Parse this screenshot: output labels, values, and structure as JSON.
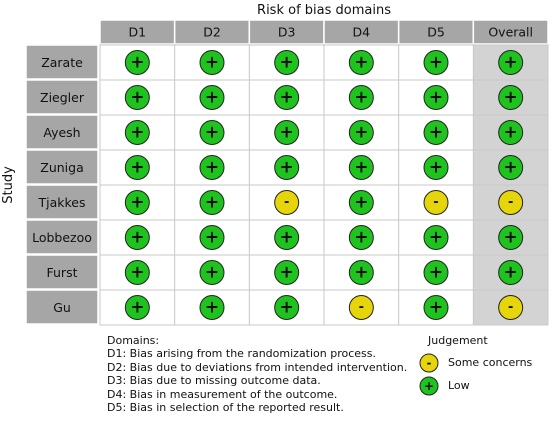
{
  "colors": {
    "header_bg": "#a6a6a6",
    "study_bg": "#a6a6a6",
    "overall_col_bg": "#d3d3d3",
    "grid_line": "#c8c8c8",
    "low": "#1ec31e",
    "some_concerns": "#e5d50a",
    "outline": "#222222"
  },
  "chart_data": {
    "type": "table",
    "title": "Risk of bias domains",
    "ylabel": "Study",
    "columns": [
      "D1",
      "D2",
      "D3",
      "D4",
      "D5",
      "Overall"
    ],
    "studies": [
      "Zarate",
      "Ziegler",
      "Ayesh",
      "Zuniga",
      "Tjakkes",
      "Lobbezoo",
      "Furst",
      "Gu"
    ],
    "judgements": [
      [
        "+",
        "+",
        "+",
        "+",
        "+",
        "+"
      ],
      [
        "+",
        "+",
        "+",
        "+",
        "+",
        "+"
      ],
      [
        "+",
        "+",
        "+",
        "+",
        "+",
        "+"
      ],
      [
        "+",
        "+",
        "+",
        "+",
        "+",
        "+"
      ],
      [
        "+",
        "+",
        "-",
        "+",
        "-",
        "-"
      ],
      [
        "+",
        "+",
        "+",
        "+",
        "+",
        "+"
      ],
      [
        "+",
        "+",
        "+",
        "+",
        "+",
        "+"
      ],
      [
        "+",
        "+",
        "+",
        "-",
        "+",
        "-"
      ]
    ],
    "judgement_levels": {
      "+": "Low",
      "-": "Some concerns"
    }
  },
  "domains_note": {
    "heading": "Domains:",
    "lines": [
      "D1: Bias arising from the randomization process.",
      "D2: Bias due to deviations from intended intervention.",
      "D3: Bias due to missing outcome data.",
      "D4: Bias in measurement of the outcome.",
      "D5: Bias in selection of the reported result."
    ]
  },
  "legend": {
    "title": "Judgement",
    "items": [
      {
        "symbol": "-",
        "label": "Some concerns"
      },
      {
        "symbol": "+",
        "label": "Low"
      }
    ]
  }
}
